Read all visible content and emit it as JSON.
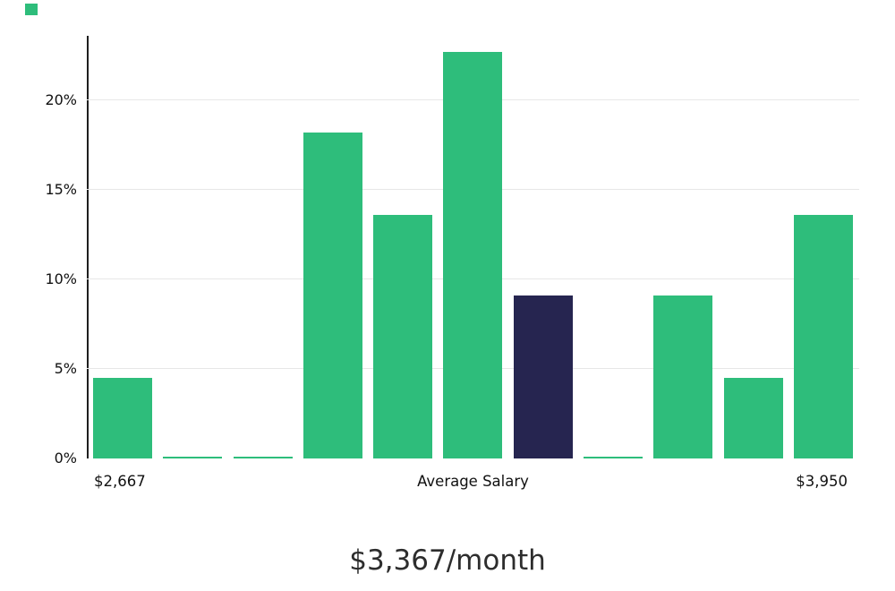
{
  "decoration": {
    "swatch_color": "#2EBD7B"
  },
  "chart_data": {
    "type": "bar",
    "title": "$3,367/month",
    "values": [
      4.5,
      0.1,
      0.1,
      18.2,
      13.6,
      22.7,
      9.1,
      0.1,
      9.1,
      4.5,
      13.6
    ],
    "highlight_index": 6,
    "bar_color": "#2EBD7B",
    "highlight_color": "#262550",
    "grid": true,
    "gridline_color": "#e7e7e7",
    "axis_line_color": "#1f1f1f",
    "y_ticks": [
      {
        "label": "20%",
        "value": 20
      },
      {
        "label": "15%",
        "value": 15
      },
      {
        "label": "10%",
        "value": 10
      },
      {
        "label": "5%",
        "value": 5
      },
      {
        "label": "0%",
        "value": 0
      }
    ],
    "ylim": [
      0,
      23.6
    ],
    "ylabel": "",
    "xlabel": "",
    "x_axis_labels": {
      "left": "$2,667",
      "center": "Average Salary",
      "right": "$3,950"
    },
    "legend": "none"
  },
  "footer": {
    "salary_text": "$3,367/month"
  }
}
